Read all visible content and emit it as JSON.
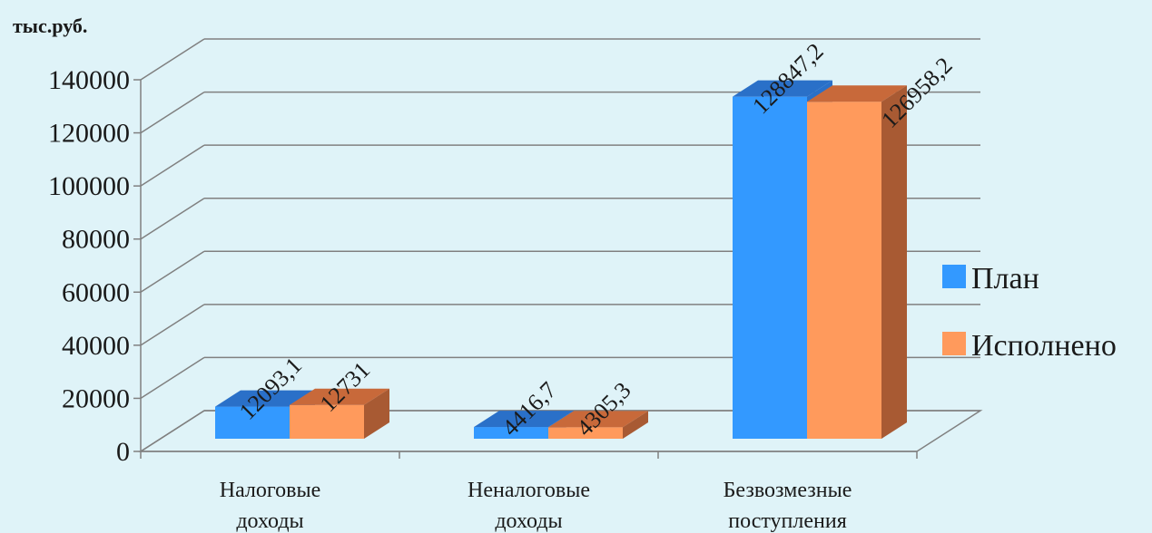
{
  "chart_data": {
    "type": "bar",
    "unit_label": "тыс.руб.",
    "categories": [
      [
        "Налоговые",
        "доходы"
      ],
      [
        "Неналоговые",
        "доходы"
      ],
      [
        "Безвозмезные",
        "поступления"
      ]
    ],
    "series": [
      {
        "name": "План",
        "color": "#3399ff",
        "top_color": "#2a70c8",
        "side_color": "#2a70c8",
        "values": [
          12093.1,
          4416.7,
          128847.2
        ],
        "labels": [
          "12093,1",
          "4416,7",
          "128847,2"
        ]
      },
      {
        "name": "Исполнено",
        "color": "#ff9a5c",
        "top_color": "#c8693a",
        "side_color": "#a85a33",
        "values": [
          12731,
          4305.3,
          126958.2
        ],
        "labels": [
          "12731",
          "4305,3",
          "126958,2"
        ]
      }
    ],
    "ylim": [
      0,
      140000
    ],
    "yticks": [
      "0",
      "20000",
      "40000",
      "60000",
      "80000",
      "100000",
      "120000",
      "140000"
    ],
    "grid": true,
    "legend_position": "right"
  }
}
